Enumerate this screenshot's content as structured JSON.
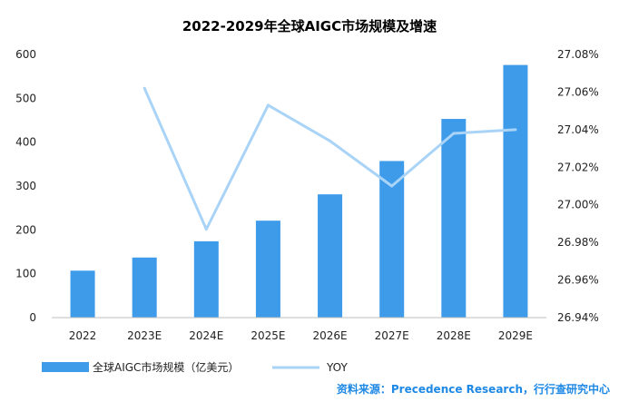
{
  "chart_data": {
    "type": "bar",
    "title": "2022-2029年全球AIGC市场规模及增速",
    "categories": [
      "2022",
      "2023E",
      "2024E",
      "2025E",
      "2026E",
      "2027E",
      "2028E",
      "2029E"
    ],
    "series": [
      {
        "name": "全球AIGC市场规模（亿美元）",
        "type": "bar",
        "axis": "left",
        "values": [
          107,
          137,
          174,
          221,
          281,
          357,
          453,
          576
        ]
      },
      {
        "name": "YOY",
        "type": "line",
        "axis": "right",
        "values": [
          null,
          27.062,
          26.987,
          27.053,
          27.034,
          27.01,
          27.038,
          27.04
        ]
      }
    ],
    "y_left": {
      "ylim": [
        0,
        600
      ],
      "ticks": [
        "0",
        "100",
        "200",
        "300",
        "400",
        "500",
        "600"
      ]
    },
    "y_right": {
      "ylim": [
        26.94,
        27.08
      ],
      "ticks": [
        "26.94%",
        "26.96%",
        "26.98%",
        "27.00%",
        "27.02%",
        "27.04%",
        "27.06%",
        "27.08%"
      ]
    },
    "grid": false,
    "legend_position": "bottom-left",
    "colors": {
      "bar": "#3d9bea",
      "line": "#a9d4f7"
    },
    "source": "资料来源：Precedence Research，行行查研究中心"
  }
}
